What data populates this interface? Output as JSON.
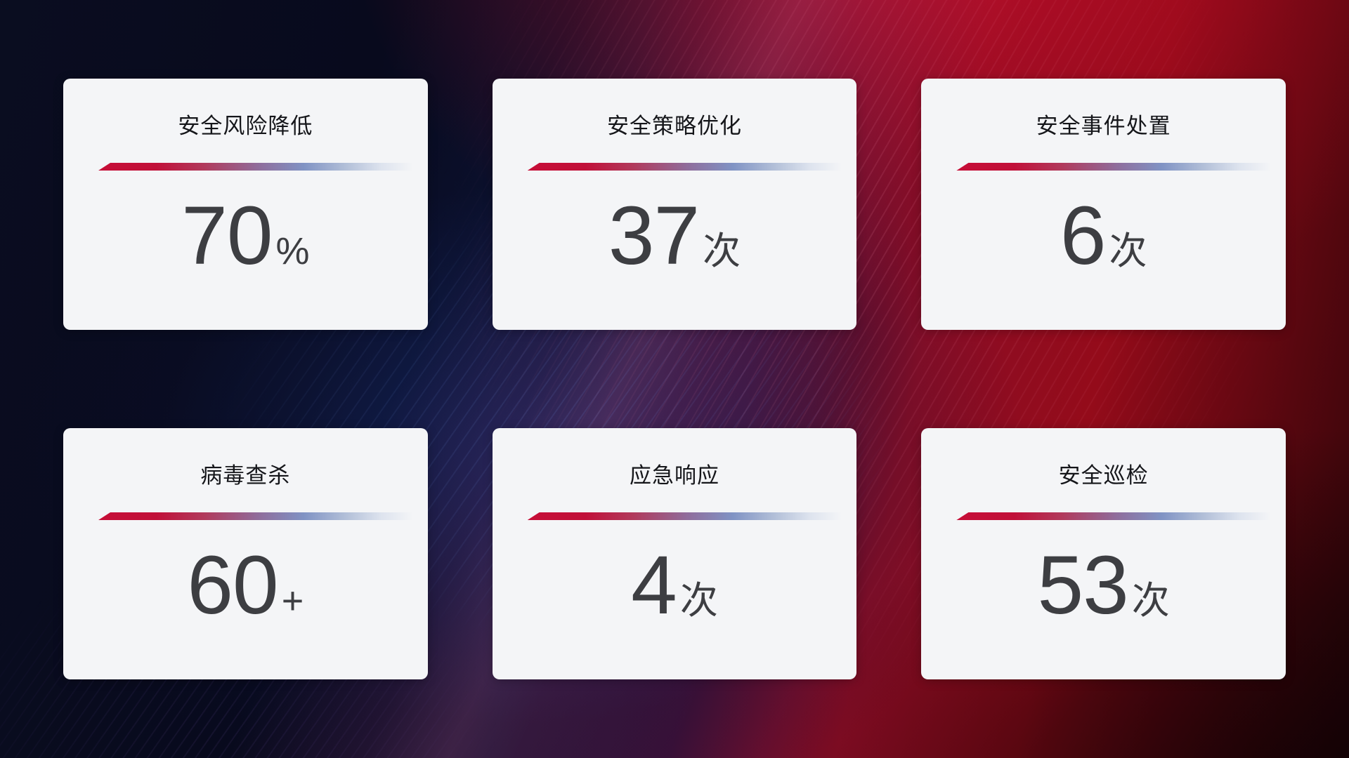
{
  "page": {
    "kind": "security-operations-stats-dashboard"
  },
  "colors": {
    "card_background": "#f4f5f7",
    "title_text": "#15161a",
    "value_text": "#3d3e42",
    "divider_red": "#c60e37",
    "divider_blue": "#8093c4",
    "background_navy": "#0c1334",
    "background_red": "#940b1a"
  },
  "cards": [
    {
      "title": "安全风险降低",
      "value": "70",
      "unit": "%"
    },
    {
      "title": "安全策略优化",
      "value": "37",
      "unit": "次"
    },
    {
      "title": "安全事件处置",
      "value": "6",
      "unit": "次"
    },
    {
      "title": "病毒查杀",
      "value": "60",
      "unit": "+"
    },
    {
      "title": "应急响应",
      "value": "4",
      "unit": "次"
    },
    {
      "title": "安全巡检",
      "value": "53",
      "unit": "次"
    }
  ]
}
